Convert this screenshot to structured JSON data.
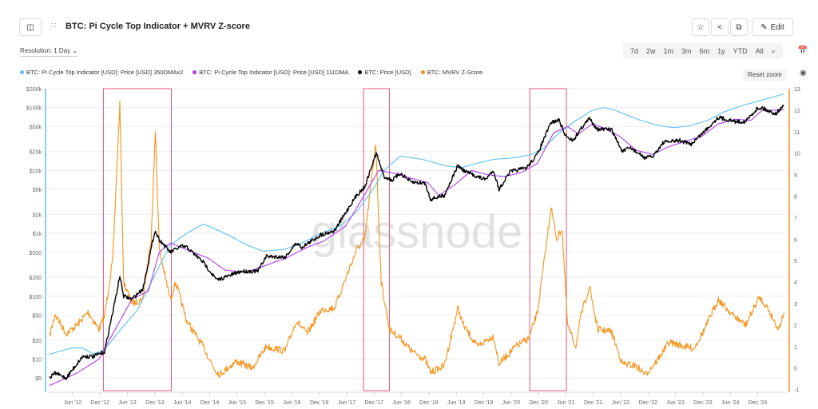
{
  "header": {
    "title": "BTC: Pi Cycle Top Indicator + MVRV Z-score",
    "edit_label": "Edit"
  },
  "toolbar": {
    "resolution": "Resolution: 1 Day",
    "ranges": [
      "7d",
      "2w",
      "1m",
      "3m",
      "6m",
      "1y",
      "YTD",
      "All"
    ],
    "reset_zoom": "Reset zoom"
  },
  "icons": {
    "sidebar": "sidebar-toggle-icon",
    "drag": "drag-handle-icon",
    "star": "star-icon",
    "share": "share-icon",
    "copy": "copy-icon",
    "edit": "pencil-icon",
    "zoom": "zoom-search-icon",
    "calendar": "calendar-icon",
    "camera": "camera-icon"
  },
  "watermark": "glassnode",
  "chart_data": {
    "type": "line",
    "title": "BTC: Pi Cycle Top Indicator + MVRV Z-score",
    "x_ticks": [
      "Jun '12",
      "Dec '12",
      "Jun '13",
      "Dec '13",
      "Jun '14",
      "Dec '14",
      "Jun '15",
      "Dec '15",
      "Jun '16",
      "Dec '16",
      "Jun '17",
      "Dec '17",
      "Jun '18",
      "Dec '18",
      "Jun '19",
      "Dec '19",
      "Jun '20",
      "Dec '20",
      "Jun '21",
      "Dec '21",
      "Jun '22",
      "Dec '22",
      "Jun '23",
      "Dec '23",
      "Jun '24",
      "Dec '24"
    ],
    "x_tick_years": [
      2012.42,
      2012.92,
      2013.42,
      2013.92,
      2014.42,
      2014.92,
      2015.42,
      2015.92,
      2016.42,
      2016.92,
      2017.42,
      2017.92,
      2018.42,
      2018.92,
      2019.42,
      2019.92,
      2020.42,
      2020.92,
      2021.42,
      2021.92,
      2022.42,
      2022.92,
      2023.42,
      2023.92,
      2024.42,
      2024.92
    ],
    "y_left": {
      "scale": "log",
      "range": [
        5,
        200000
      ],
      "ticks": [
        "$200k",
        "$100k",
        "$50k",
        "$20k",
        "$10k",
        "$5k",
        "$2k",
        "$1k",
        "$500",
        "$200",
        "$100",
        "$50",
        "$20",
        "$10",
        "$5"
      ],
      "tick_values": [
        200000,
        100000,
        50000,
        20000,
        10000,
        5000,
        2000,
        1000,
        500,
        200,
        100,
        50,
        20,
        10,
        5
      ]
    },
    "y_right": {
      "range": [
        -1,
        13
      ],
      "ticks": [
        "13",
        "12",
        "11",
        "10",
        "9",
        "8",
        "7",
        "6",
        "5",
        "4",
        "3",
        "2",
        "1",
        "0",
        "-1"
      ]
    },
    "highlights": [
      [
        2012.98,
        2014.22
      ],
      [
        2017.73,
        2018.2
      ],
      [
        2020.76,
        2021.43
      ]
    ],
    "legend_position": "top-left",
    "series": [
      {
        "name": "BTC: Pi Cycle Top Indicator [USD]: Price [USD] 350DMAx2",
        "color": "#5bc0f5",
        "axis": "left",
        "points": [
          [
            2012.0,
            12
          ],
          [
            2012.4,
            15
          ],
          [
            2012.6,
            15
          ],
          [
            2012.8,
            12
          ],
          [
            2013.0,
            14
          ],
          [
            2013.3,
            30
          ],
          [
            2013.6,
            60
          ],
          [
            2014.0,
            300
          ],
          [
            2014.2,
            650
          ],
          [
            2014.5,
            1000
          ],
          [
            2014.8,
            1400
          ],
          [
            2015.0,
            1200
          ],
          [
            2015.3,
            900
          ],
          [
            2015.6,
            650
          ],
          [
            2015.9,
            520
          ],
          [
            2016.3,
            560
          ],
          [
            2016.6,
            700
          ],
          [
            2016.95,
            1000
          ],
          [
            2017.3,
            1300
          ],
          [
            2017.6,
            2200
          ],
          [
            2017.9,
            5000
          ],
          [
            2018.1,
            10000
          ],
          [
            2018.4,
            17000
          ],
          [
            2018.8,
            15000
          ],
          [
            2019.2,
            12000
          ],
          [
            2019.5,
            11000
          ],
          [
            2019.8,
            13000
          ],
          [
            2020.1,
            15000
          ],
          [
            2020.5,
            16000
          ],
          [
            2020.8,
            18000
          ],
          [
            2021.0,
            22000
          ],
          [
            2021.3,
            40000
          ],
          [
            2021.6,
            62000
          ],
          [
            2021.9,
            90000
          ],
          [
            2022.1,
            100000
          ],
          [
            2022.3,
            92000
          ],
          [
            2022.5,
            78000
          ],
          [
            2022.8,
            62000
          ],
          [
            2023.1,
            52000
          ],
          [
            2023.4,
            48000
          ],
          [
            2023.7,
            52000
          ],
          [
            2024.0,
            62000
          ],
          [
            2024.3,
            85000
          ],
          [
            2024.6,
            105000
          ],
          [
            2024.9,
            125000
          ],
          [
            2025.4,
            165000
          ]
        ]
      },
      {
        "name": "BTC: Pi Cycle Top Indicator [USD]: Price [USD] 111DMA",
        "color": "#b03af0",
        "axis": "left",
        "points": [
          [
            2012.0,
            3.8
          ],
          [
            2012.5,
            6
          ],
          [
            2012.9,
            10
          ],
          [
            2013.2,
            30
          ],
          [
            2013.5,
            90
          ],
          [
            2013.8,
            120
          ],
          [
            2014.0,
            500
          ],
          [
            2014.2,
            700
          ],
          [
            2014.5,
            550
          ],
          [
            2014.9,
            400
          ],
          [
            2015.2,
            260
          ],
          [
            2015.6,
            240
          ],
          [
            2015.9,
            300
          ],
          [
            2016.3,
            400
          ],
          [
            2016.7,
            600
          ],
          [
            2017.0,
            750
          ],
          [
            2017.4,
            1300
          ],
          [
            2017.7,
            3500
          ],
          [
            2018.0,
            10000
          ],
          [
            2018.3,
            9000
          ],
          [
            2018.6,
            7500
          ],
          [
            2018.9,
            6400
          ],
          [
            2019.1,
            4000
          ],
          [
            2019.4,
            6000
          ],
          [
            2019.7,
            10000
          ],
          [
            2020.0,
            8500
          ],
          [
            2020.3,
            8000
          ],
          [
            2020.6,
            9200
          ],
          [
            2020.9,
            13000
          ],
          [
            2021.2,
            40000
          ],
          [
            2021.45,
            50000
          ],
          [
            2021.65,
            38000
          ],
          [
            2021.9,
            55000
          ],
          [
            2022.1,
            48000
          ],
          [
            2022.4,
            35000
          ],
          [
            2022.7,
            21000
          ],
          [
            2023.0,
            18000
          ],
          [
            2023.3,
            24000
          ],
          [
            2023.6,
            29000
          ],
          [
            2023.9,
            35000
          ],
          [
            2024.2,
            55000
          ],
          [
            2024.5,
            65000
          ],
          [
            2024.8,
            63000
          ],
          [
            2025.0,
            90000
          ],
          [
            2025.4,
            92000
          ]
        ]
      },
      {
        "name": "BTC: Price [USD]",
        "color": "#000000",
        "axis": "left",
        "points": [
          [
            2012.0,
            5
          ],
          [
            2012.1,
            6
          ],
          [
            2012.3,
            5
          ],
          [
            2012.6,
            11
          ],
          [
            2012.8,
            11
          ],
          [
            2013.0,
            13
          ],
          [
            2013.2,
            90
          ],
          [
            2013.28,
            210
          ],
          [
            2013.35,
            100
          ],
          [
            2013.5,
            90
          ],
          [
            2013.7,
            130
          ],
          [
            2013.92,
            1100
          ],
          [
            2014.0,
            800
          ],
          [
            2014.2,
            500
          ],
          [
            2014.4,
            620
          ],
          [
            2014.5,
            600
          ],
          [
            2014.8,
            350
          ],
          [
            2015.05,
            180
          ],
          [
            2015.5,
            250
          ],
          [
            2015.8,
            250
          ],
          [
            2015.95,
            430
          ],
          [
            2016.3,
            420
          ],
          [
            2016.5,
            700
          ],
          [
            2016.6,
            600
          ],
          [
            2016.95,
            950
          ],
          [
            2017.2,
            1100
          ],
          [
            2017.45,
            2500
          ],
          [
            2017.6,
            4000
          ],
          [
            2017.75,
            5500
          ],
          [
            2017.96,
            19000
          ],
          [
            2018.1,
            8000
          ],
          [
            2018.25,
            7000
          ],
          [
            2018.4,
            9000
          ],
          [
            2018.6,
            6500
          ],
          [
            2018.85,
            6300
          ],
          [
            2018.95,
            3500
          ],
          [
            2019.2,
            4000
          ],
          [
            2019.45,
            12000
          ],
          [
            2019.55,
            10000
          ],
          [
            2019.8,
            8000
          ],
          [
            2019.95,
            7200
          ],
          [
            2020.1,
            10000
          ],
          [
            2020.2,
            5000
          ],
          [
            2020.4,
            9500
          ],
          [
            2020.7,
            11000
          ],
          [
            2020.9,
            18000
          ],
          [
            2021.0,
            29000
          ],
          [
            2021.15,
            58000
          ],
          [
            2021.3,
            63000
          ],
          [
            2021.4,
            37000
          ],
          [
            2021.55,
            30000
          ],
          [
            2021.7,
            47000
          ],
          [
            2021.85,
            67000
          ],
          [
            2022.0,
            45000
          ],
          [
            2022.25,
            45000
          ],
          [
            2022.45,
            20000
          ],
          [
            2022.6,
            23000
          ],
          [
            2022.85,
            16000
          ],
          [
            2023.0,
            16500
          ],
          [
            2023.2,
            28000
          ],
          [
            2023.5,
            30000
          ],
          [
            2023.7,
            26000
          ],
          [
            2023.95,
            42000
          ],
          [
            2024.2,
            70000
          ],
          [
            2024.5,
            60000
          ],
          [
            2024.7,
            60000
          ],
          [
            2024.9,
            95000
          ],
          [
            2025.0,
            100000
          ],
          [
            2025.1,
            90000
          ],
          [
            2025.25,
            80000
          ],
          [
            2025.4,
            108000
          ]
        ]
      },
      {
        "name": "BTC: MVRV Z-Score",
        "color": "#f7931a",
        "axis": "right",
        "points": [
          [
            2012.0,
            1.5
          ],
          [
            2012.1,
            2.5
          ],
          [
            2012.3,
            1.6
          ],
          [
            2012.5,
            2.0
          ],
          [
            2012.7,
            2.6
          ],
          [
            2012.9,
            1.8
          ],
          [
            2013.0,
            2.4
          ],
          [
            2013.15,
            5
          ],
          [
            2013.28,
            12.3
          ],
          [
            2013.35,
            4
          ],
          [
            2013.5,
            3
          ],
          [
            2013.7,
            3.2
          ],
          [
            2013.85,
            6
          ],
          [
            2013.93,
            11
          ],
          [
            2014.0,
            5.5
          ],
          [
            2014.2,
            3.2
          ],
          [
            2014.3,
            4
          ],
          [
            2014.5,
            2.2
          ],
          [
            2014.8,
            1.0
          ],
          [
            2015.0,
            0
          ],
          [
            2015.1,
            -0.3
          ],
          [
            2015.4,
            0.3
          ],
          [
            2015.7,
            0
          ],
          [
            2015.95,
            1.0
          ],
          [
            2016.3,
            0.8
          ],
          [
            2016.5,
            2.2
          ],
          [
            2016.7,
            1.6
          ],
          [
            2016.95,
            2.7
          ],
          [
            2017.2,
            2.8
          ],
          [
            2017.45,
            4.5
          ],
          [
            2017.6,
            5.5
          ],
          [
            2017.75,
            6
          ],
          [
            2017.95,
            10.5
          ],
          [
            2018.05,
            4
          ],
          [
            2018.2,
            1.8
          ],
          [
            2018.4,
            1.4
          ],
          [
            2018.6,
            0.8
          ],
          [
            2018.85,
            0.4
          ],
          [
            2018.95,
            -0.2
          ],
          [
            2019.2,
            0.1
          ],
          [
            2019.45,
            2.8
          ],
          [
            2019.55,
            2
          ],
          [
            2019.8,
            1.0
          ],
          [
            2020.1,
            1.5
          ],
          [
            2020.2,
            0.2
          ],
          [
            2020.5,
            1.0
          ],
          [
            2020.75,
            1.4
          ],
          [
            2020.9,
            2.6
          ],
          [
            2021.0,
            4.5
          ],
          [
            2021.15,
            7.5
          ],
          [
            2021.25,
            6
          ],
          [
            2021.35,
            6.5
          ],
          [
            2021.45,
            2.0
          ],
          [
            2021.6,
            1.0
          ],
          [
            2021.7,
            2.5
          ],
          [
            2021.85,
            3.8
          ],
          [
            2022.0,
            1.8
          ],
          [
            2022.25,
            1.7
          ],
          [
            2022.45,
            0.2
          ],
          [
            2022.7,
            0.1
          ],
          [
            2022.87,
            -0.3
          ],
          [
            2023.1,
            0.4
          ],
          [
            2023.3,
            1.2
          ],
          [
            2023.6,
            1.0
          ],
          [
            2023.75,
            0.9
          ],
          [
            2023.95,
            1.8
          ],
          [
            2024.2,
            3.2
          ],
          [
            2024.45,
            2.5
          ],
          [
            2024.7,
            2.0
          ],
          [
            2024.95,
            3.3
          ],
          [
            2025.1,
            2.8
          ],
          [
            2025.3,
            1.8
          ],
          [
            2025.4,
            2.6
          ]
        ]
      }
    ]
  }
}
